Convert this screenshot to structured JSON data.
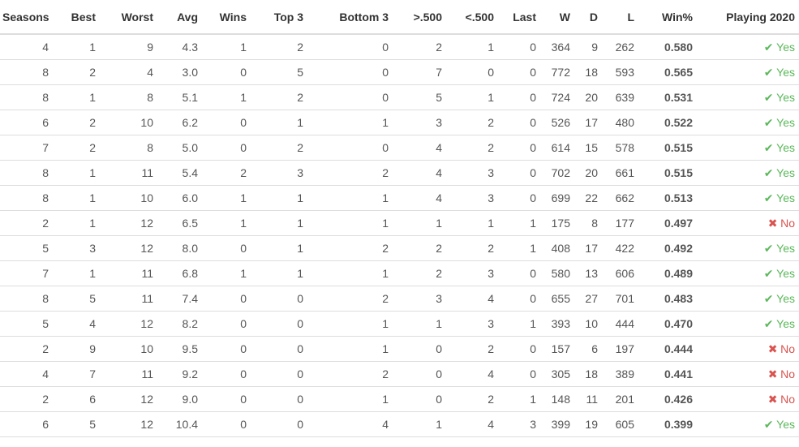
{
  "columns": [
    "Seasons",
    "Best",
    "Worst",
    "Avg",
    "Wins",
    "Top 3",
    "Bottom 3",
    ">.500",
    "<.500",
    "Last",
    "W",
    "D",
    "L",
    "Win%",
    "Playing 2020"
  ],
  "colors": {
    "yes": "#5cb85c",
    "no": "#d9534f",
    "border": "#dddddd"
  },
  "icons": {
    "yes": "check-icon",
    "no": "cross-icon"
  },
  "rows": [
    {
      "seasons": "4",
      "best": "1",
      "worst": "9",
      "avg": "4.3",
      "wins": "1",
      "top3": "2",
      "bottom3": "0",
      "over500": "2",
      "under500": "1",
      "last": "0",
      "w": "364",
      "d": "9",
      "l": "262",
      "pct": "0.580",
      "playing": "Yes"
    },
    {
      "seasons": "8",
      "best": "2",
      "worst": "4",
      "avg": "3.0",
      "wins": "0",
      "top3": "5",
      "bottom3": "0",
      "over500": "7",
      "under500": "0",
      "last": "0",
      "w": "772",
      "d": "18",
      "l": "593",
      "pct": "0.565",
      "playing": "Yes"
    },
    {
      "seasons": "8",
      "best": "1",
      "worst": "8",
      "avg": "5.1",
      "wins": "1",
      "top3": "2",
      "bottom3": "0",
      "over500": "5",
      "under500": "1",
      "last": "0",
      "w": "724",
      "d": "20",
      "l": "639",
      "pct": "0.531",
      "playing": "Yes"
    },
    {
      "seasons": "6",
      "best": "2",
      "worst": "10",
      "avg": "6.2",
      "wins": "0",
      "top3": "1",
      "bottom3": "1",
      "over500": "3",
      "under500": "2",
      "last": "0",
      "w": "526",
      "d": "17",
      "l": "480",
      "pct": "0.522",
      "playing": "Yes"
    },
    {
      "seasons": "7",
      "best": "2",
      "worst": "8",
      "avg": "5.0",
      "wins": "0",
      "top3": "2",
      "bottom3": "0",
      "over500": "4",
      "under500": "2",
      "last": "0",
      "w": "614",
      "d": "15",
      "l": "578",
      "pct": "0.515",
      "playing": "Yes"
    },
    {
      "seasons": "8",
      "best": "1",
      "worst": "11",
      "avg": "5.4",
      "wins": "2",
      "top3": "3",
      "bottom3": "2",
      "over500": "4",
      "under500": "3",
      "last": "0",
      "w": "702",
      "d": "20",
      "l": "661",
      "pct": "0.515",
      "playing": "Yes"
    },
    {
      "seasons": "8",
      "best": "1",
      "worst": "10",
      "avg": "6.0",
      "wins": "1",
      "top3": "1",
      "bottom3": "1",
      "over500": "4",
      "under500": "3",
      "last": "0",
      "w": "699",
      "d": "22",
      "l": "662",
      "pct": "0.513",
      "playing": "Yes"
    },
    {
      "seasons": "2",
      "best": "1",
      "worst": "12",
      "avg": "6.5",
      "wins": "1",
      "top3": "1",
      "bottom3": "1",
      "over500": "1",
      "under500": "1",
      "last": "1",
      "w": "175",
      "d": "8",
      "l": "177",
      "pct": "0.497",
      "playing": "No"
    },
    {
      "seasons": "5",
      "best": "3",
      "worst": "12",
      "avg": "8.0",
      "wins": "0",
      "top3": "1",
      "bottom3": "2",
      "over500": "2",
      "under500": "2",
      "last": "1",
      "w": "408",
      "d": "17",
      "l": "422",
      "pct": "0.492",
      "playing": "Yes"
    },
    {
      "seasons": "7",
      "best": "1",
      "worst": "11",
      "avg": "6.8",
      "wins": "1",
      "top3": "1",
      "bottom3": "1",
      "over500": "2",
      "under500": "3",
      "last": "0",
      "w": "580",
      "d": "13",
      "l": "606",
      "pct": "0.489",
      "playing": "Yes"
    },
    {
      "seasons": "8",
      "best": "5",
      "worst": "11",
      "avg": "7.4",
      "wins": "0",
      "top3": "0",
      "bottom3": "2",
      "over500": "3",
      "under500": "4",
      "last": "0",
      "w": "655",
      "d": "27",
      "l": "701",
      "pct": "0.483",
      "playing": "Yes"
    },
    {
      "seasons": "5",
      "best": "4",
      "worst": "12",
      "avg": "8.2",
      "wins": "0",
      "top3": "0",
      "bottom3": "1",
      "over500": "1",
      "under500": "3",
      "last": "1",
      "w": "393",
      "d": "10",
      "l": "444",
      "pct": "0.470",
      "playing": "Yes"
    },
    {
      "seasons": "2",
      "best": "9",
      "worst": "10",
      "avg": "9.5",
      "wins": "0",
      "top3": "0",
      "bottom3": "1",
      "over500": "0",
      "under500": "2",
      "last": "0",
      "w": "157",
      "d": "6",
      "l": "197",
      "pct": "0.444",
      "playing": "No"
    },
    {
      "seasons": "4",
      "best": "7",
      "worst": "11",
      "avg": "9.2",
      "wins": "0",
      "top3": "0",
      "bottom3": "2",
      "over500": "0",
      "under500": "4",
      "last": "0",
      "w": "305",
      "d": "18",
      "l": "389",
      "pct": "0.441",
      "playing": "No"
    },
    {
      "seasons": "2",
      "best": "6",
      "worst": "12",
      "avg": "9.0",
      "wins": "0",
      "top3": "0",
      "bottom3": "1",
      "over500": "0",
      "under500": "2",
      "last": "1",
      "w": "148",
      "d": "11",
      "l": "201",
      "pct": "0.426",
      "playing": "No"
    },
    {
      "seasons": "6",
      "best": "5",
      "worst": "12",
      "avg": "10.4",
      "wins": "0",
      "top3": "0",
      "bottom3": "4",
      "over500": "1",
      "under500": "4",
      "last": "3",
      "w": "399",
      "d": "19",
      "l": "605",
      "pct": "0.399",
      "playing": "Yes"
    }
  ]
}
